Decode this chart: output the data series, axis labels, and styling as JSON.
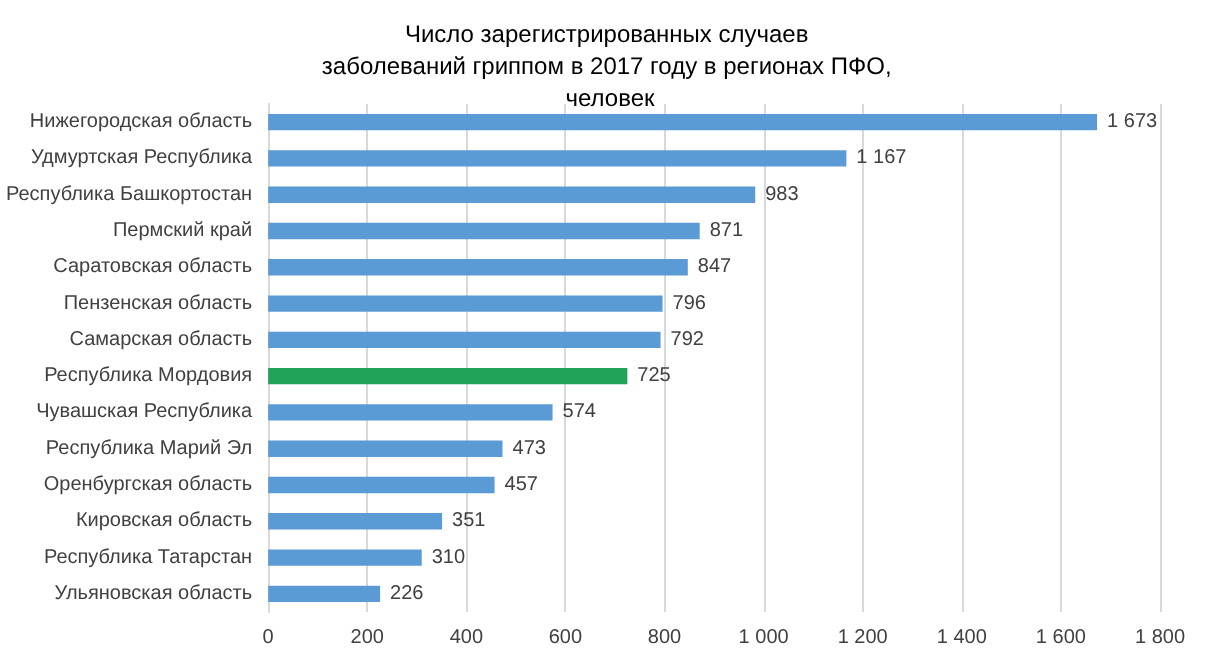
{
  "chart_data": {
    "type": "bar",
    "orientation": "horizontal",
    "title": "Число зарегистрированных случаев заболеваний гриппом в 2017 году в регионах ПФО, человек",
    "categories": [
      "Нижегородская область",
      "Удмуртская Республика",
      "Республика Башкортостан",
      "Пермский край",
      "Саратовская область",
      "Пензенская область",
      "Самарская область",
      "Республика Мордовия",
      "Чувашская Республика",
      "Республика Марий Эл",
      "Оренбургская область",
      "Кировская область",
      "Республика Татарстан",
      "Ульяновская область"
    ],
    "values": [
      1673,
      1167,
      983,
      871,
      847,
      796,
      792,
      725,
      574,
      473,
      457,
      351,
      310,
      226
    ],
    "value_labels": [
      "1 673",
      "1 167",
      "983",
      "871",
      "847",
      "796",
      "792",
      "725",
      "574",
      "473",
      "457",
      "351",
      "310",
      "226"
    ],
    "colors": [
      "#5b9bd5",
      "#5b9bd5",
      "#5b9bd5",
      "#5b9bd5",
      "#5b9bd5",
      "#5b9bd5",
      "#5b9bd5",
      "#21a35a",
      "#5b9bd5",
      "#5b9bd5",
      "#5b9bd5",
      "#5b9bd5",
      "#5b9bd5",
      "#5b9bd5"
    ],
    "xlim": [
      0,
      1800
    ],
    "xticks": [
      0,
      200,
      400,
      600,
      800,
      {
        "value": 1000,
        "label": "1 000"
      },
      {
        "value": 1200,
        "label": "1 200"
      },
      {
        "value": 1400,
        "label": "1 400"
      },
      {
        "value": 1600,
        "label": "1 600"
      },
      {
        "value": 1800,
        "label": "1 800"
      }
    ],
    "grid": "x"
  }
}
